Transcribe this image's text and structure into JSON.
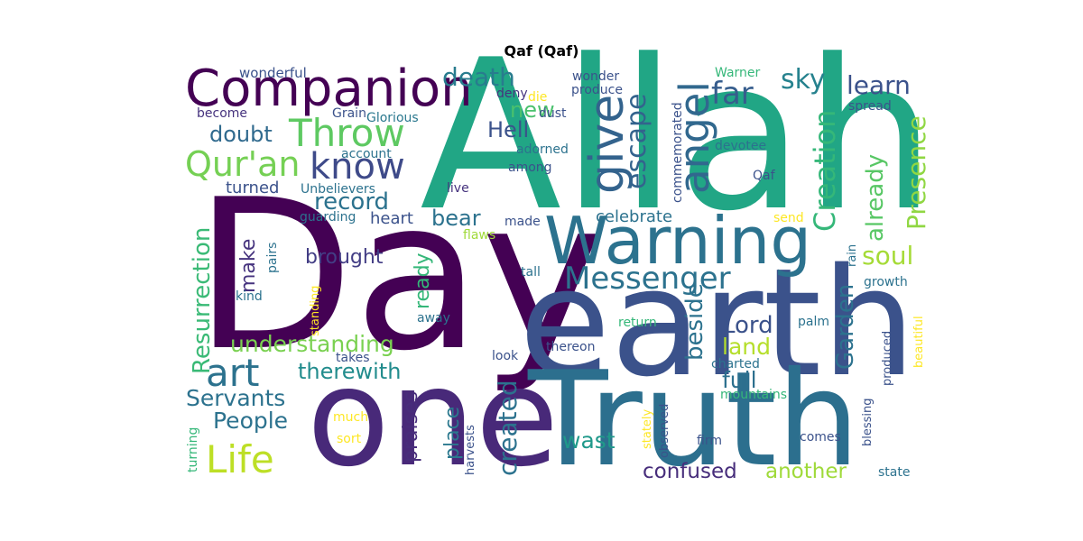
{
  "title": "Qaf (Qaf)",
  "chart_data": {
    "type": "wordcloud",
    "title": "Qaf (Qaf)",
    "colormap": "viridis",
    "words": [
      {
        "text": "Allah",
        "weight": 1.0,
        "color": "#21a685"
      },
      {
        "text": "Day",
        "weight": 0.98,
        "color": "#440154"
      },
      {
        "text": "earth",
        "weight": 0.85,
        "color": "#3b528b"
      },
      {
        "text": "one",
        "weight": 0.8,
        "color": "#482979"
      },
      {
        "text": "Truth",
        "weight": 0.75,
        "color": "#2c6f8e"
      },
      {
        "text": "Warning",
        "weight": 0.5,
        "color": "#2c728e"
      },
      {
        "text": "Companion",
        "weight": 0.42,
        "color": "#440154"
      },
      {
        "text": "give",
        "weight": 0.36,
        "color": "#33638d"
      },
      {
        "text": "angel",
        "weight": 0.33,
        "color": "#31688e"
      },
      {
        "text": "Throw",
        "weight": 0.3,
        "color": "#5ec962"
      },
      {
        "text": "know",
        "weight": 0.3,
        "color": "#3e4a89"
      },
      {
        "text": "Qur'an",
        "weight": 0.27,
        "color": "#75d054"
      },
      {
        "text": "Creation",
        "weight": 0.27,
        "color": "#35b779"
      },
      {
        "text": "art",
        "weight": 0.28,
        "color": "#2c728e"
      },
      {
        "text": "Life",
        "weight": 0.28,
        "color": "#bddf26"
      },
      {
        "text": "Messenger",
        "weight": 0.25,
        "color": "#2c728e"
      },
      {
        "text": "Resurrection",
        "weight": 0.22,
        "color": "#3aba76"
      },
      {
        "text": "far",
        "weight": 0.22,
        "color": "#365d8d"
      },
      {
        "text": "escape",
        "weight": 0.22,
        "color": "#33638d"
      },
      {
        "text": "death",
        "weight": 0.2,
        "color": "#287c8e"
      },
      {
        "text": "Presence",
        "weight": 0.2,
        "color": "#90d743"
      },
      {
        "text": "sky",
        "weight": 0.18,
        "color": "#26828e"
      },
      {
        "text": "learn",
        "weight": 0.18,
        "color": "#3b528b"
      },
      {
        "text": "already",
        "weight": 0.18,
        "color": "#58c765"
      },
      {
        "text": "soul",
        "weight": 0.18,
        "color": "#a5db36"
      },
      {
        "text": "Garden",
        "weight": 0.18,
        "color": "#2c728e"
      },
      {
        "text": "beside",
        "weight": 0.18,
        "color": "#2c728e"
      },
      {
        "text": "record",
        "weight": 0.18,
        "color": "#2c728e"
      },
      {
        "text": "doubt",
        "weight": 0.17,
        "color": "#306a8e"
      },
      {
        "text": "understanding",
        "weight": 0.17,
        "color": "#7ad151"
      },
      {
        "text": "therewith",
        "weight": 0.16,
        "color": "#228c8d"
      },
      {
        "text": "Lord",
        "weight": 0.16,
        "color": "#3b528b"
      },
      {
        "text": "land",
        "weight": 0.16,
        "color": "#b5de2b"
      },
      {
        "text": "full",
        "weight": 0.16,
        "color": "#2d708e"
      },
      {
        "text": "created",
        "weight": 0.16,
        "color": "#2c728e"
      },
      {
        "text": "People",
        "weight": 0.16,
        "color": "#2c728e"
      },
      {
        "text": "Servants",
        "weight": 0.16,
        "color": "#2c728e"
      },
      {
        "text": "new",
        "weight": 0.15,
        "color": "#4ac16d"
      },
      {
        "text": "Hell",
        "weight": 0.15,
        "color": "#3b528b"
      },
      {
        "text": "bear",
        "weight": 0.15,
        "color": "#2c728e"
      },
      {
        "text": "make",
        "weight": 0.15,
        "color": "#46337e"
      },
      {
        "text": "brought",
        "weight": 0.14,
        "color": "#433e85"
      },
      {
        "text": "ready",
        "weight": 0.14,
        "color": "#35b779"
      },
      {
        "text": "wast",
        "weight": 0.14,
        "color": "#1f998a"
      },
      {
        "text": "confused",
        "weight": 0.14,
        "color": "#472d7b"
      },
      {
        "text": "another",
        "weight": 0.14,
        "color": "#9fda3a"
      },
      {
        "text": "praises",
        "weight": 0.14,
        "color": "#472d7b"
      },
      {
        "text": "place",
        "weight": 0.14,
        "color": "#2a788e"
      },
      {
        "text": "heart",
        "weight": 0.13,
        "color": "#3b528b"
      },
      {
        "text": "celebrate",
        "weight": 0.13,
        "color": "#2c728e"
      },
      {
        "text": "turned",
        "weight": 0.13,
        "color": "#3b528b"
      },
      {
        "text": "wonderful",
        "weight": 0.1,
        "color": "#3b528b"
      },
      {
        "text": "die",
        "weight": 0.1,
        "color": "#fde725"
      },
      {
        "text": "wonder",
        "weight": 0.1,
        "color": "#3b528b"
      },
      {
        "text": "produce",
        "weight": 0.1,
        "color": "#3b528b"
      },
      {
        "text": "Warner",
        "weight": 0.1,
        "color": "#35b779"
      },
      {
        "text": "deny",
        "weight": 0.1,
        "color": "#46337e"
      },
      {
        "text": "dust",
        "weight": 0.1,
        "color": "#3b528b"
      },
      {
        "text": "commemorated",
        "weight": 0.1,
        "color": "#3b528b"
      },
      {
        "text": "spread",
        "weight": 0.1,
        "color": "#3b528b"
      },
      {
        "text": "become",
        "weight": 0.1,
        "color": "#46337e"
      },
      {
        "text": "Grain",
        "weight": 0.1,
        "color": "#3b528b"
      },
      {
        "text": "Glorious",
        "weight": 0.1,
        "color": "#2a788e"
      },
      {
        "text": "account",
        "weight": 0.1,
        "color": "#2c728e"
      },
      {
        "text": "adorned",
        "weight": 0.1,
        "color": "#2c728e"
      },
      {
        "text": "devotee",
        "weight": 0.1,
        "color": "#2c728e"
      },
      {
        "text": "among",
        "weight": 0.1,
        "color": "#3b528b"
      },
      {
        "text": "Qaf",
        "weight": 0.1,
        "color": "#3b528b"
      },
      {
        "text": "Unbelievers",
        "weight": 0.1,
        "color": "#2c728e"
      },
      {
        "text": "live",
        "weight": 0.1,
        "color": "#46337e"
      },
      {
        "text": "guarding",
        "weight": 0.1,
        "color": "#2c728e"
      },
      {
        "text": "made",
        "weight": 0.1,
        "color": "#3b528b"
      },
      {
        "text": "send",
        "weight": 0.1,
        "color": "#fde725"
      },
      {
        "text": "flaws",
        "weight": 0.1,
        "color": "#a0da39"
      },
      {
        "text": "rain",
        "weight": 0.1,
        "color": "#2c728e"
      },
      {
        "text": "growth",
        "weight": 0.1,
        "color": "#2c728e"
      },
      {
        "text": "pairs",
        "weight": 0.1,
        "color": "#2c728e"
      },
      {
        "text": "tall",
        "weight": 0.1,
        "color": "#2c728e"
      },
      {
        "text": "kind",
        "weight": 0.1,
        "color": "#2c728e"
      },
      {
        "text": "standing",
        "weight": 0.1,
        "color": "#fde725"
      },
      {
        "text": "away",
        "weight": 0.1,
        "color": "#2c728e"
      },
      {
        "text": "return",
        "weight": 0.1,
        "color": "#35b779"
      },
      {
        "text": "palm",
        "weight": 0.1,
        "color": "#2c728e"
      },
      {
        "text": "beautiful",
        "weight": 0.1,
        "color": "#fde725"
      },
      {
        "text": "takes",
        "weight": 0.1,
        "color": "#3b528b"
      },
      {
        "text": "look",
        "weight": 0.1,
        "color": "#3b528b"
      },
      {
        "text": "thereon",
        "weight": 0.1,
        "color": "#3b528b"
      },
      {
        "text": "charted",
        "weight": 0.1,
        "color": "#2c728e"
      },
      {
        "text": "produced",
        "weight": 0.1,
        "color": "#3b528b"
      },
      {
        "text": "mountains",
        "weight": 0.1,
        "color": "#35b779"
      },
      {
        "text": "much",
        "weight": 0.1,
        "color": "#fde725"
      },
      {
        "text": "sort",
        "weight": 0.1,
        "color": "#fde725"
      },
      {
        "text": "harvests",
        "weight": 0.1,
        "color": "#3b528b"
      },
      {
        "text": "stately",
        "weight": 0.1,
        "color": "#fde725"
      },
      {
        "text": "observed",
        "weight": 0.1,
        "color": "#3b528b"
      },
      {
        "text": "comes",
        "weight": 0.1,
        "color": "#3b528b"
      },
      {
        "text": "blessing",
        "weight": 0.1,
        "color": "#3b528b"
      },
      {
        "text": "firm",
        "weight": 0.1,
        "color": "#3b528b"
      },
      {
        "text": "state",
        "weight": 0.1,
        "color": "#2c728e"
      },
      {
        "text": "turning",
        "weight": 0.1,
        "color": "#35b779"
      }
    ]
  }
}
